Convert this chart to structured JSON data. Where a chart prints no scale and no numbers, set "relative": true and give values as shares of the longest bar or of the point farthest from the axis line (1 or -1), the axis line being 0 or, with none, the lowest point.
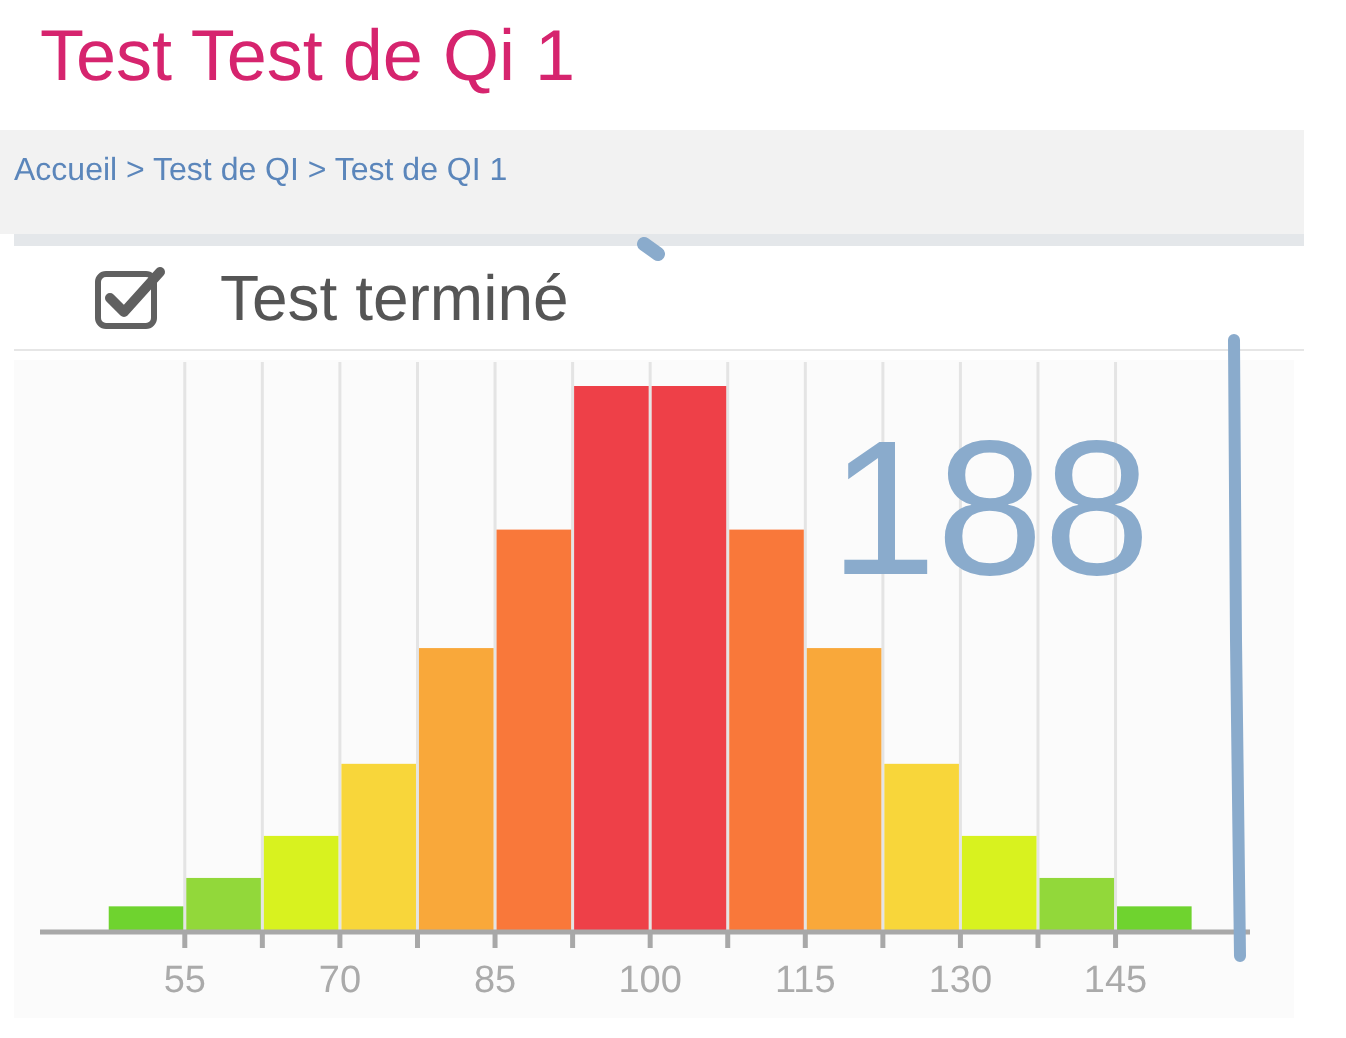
{
  "chart_data": {
    "type": "bar",
    "title": "Test Test de Qi 1",
    "subtitle": "Test terminé",
    "annotations": [
      "Accueil > Test de QI > Test de QI 1",
      "188"
    ],
    "x": [
      51.25,
      58.75,
      66.25,
      73.75,
      81.25,
      88.75,
      96.25,
      103.75,
      111.25,
      118.75,
      126.25,
      133.75,
      141.25,
      148.75
    ],
    "values": [
      0.047,
      0.099,
      0.176,
      0.308,
      0.52,
      0.737,
      1,
      1,
      0.737,
      0.52,
      0.308,
      0.176,
      0.099,
      0.047
    ],
    "colors": [
      "#6fd32f",
      "#92d83a",
      "#d8f21f",
      "#f8d63a",
      "#f9a83a",
      "#f9783a",
      "#ee4048",
      "#ee4048",
      "#f9783a",
      "#f9a83a",
      "#f8d63a",
      "#d8f21f",
      "#92d83a",
      "#6fd32f"
    ],
    "relative": true,
    "xlim": [
      41,
      158
    ],
    "xticks": [
      55,
      {
        "value": 62.5,
        "label": null
      },
      70,
      {
        "value": 77.5,
        "label": null
      },
      85,
      {
        "value": 92.5,
        "label": null
      },
      100,
      {
        "value": 107.5,
        "label": null
      },
      115,
      {
        "value": 122.5,
        "label": null
      },
      130,
      {
        "value": 137.5,
        "label": null
      },
      145
    ],
    "grid": "x"
  }
}
